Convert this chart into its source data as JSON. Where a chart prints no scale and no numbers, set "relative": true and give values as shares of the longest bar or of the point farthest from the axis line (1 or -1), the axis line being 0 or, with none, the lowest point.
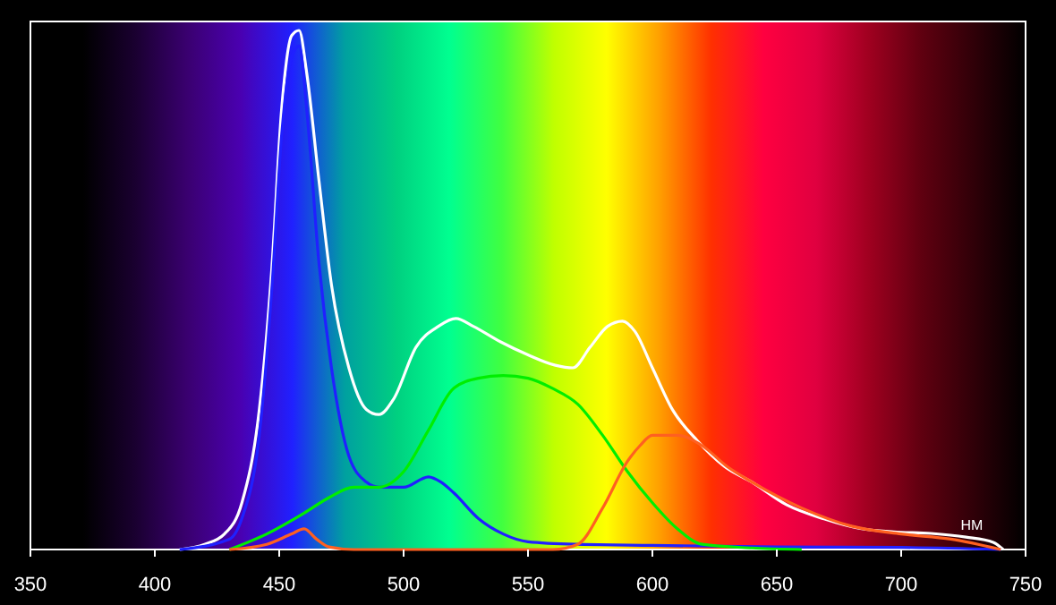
{
  "chart_data": {
    "type": "line",
    "relative": true,
    "xlabel": "НМ",
    "xlim": [
      350,
      750
    ],
    "xticks": [
      350,
      400,
      450,
      500,
      550,
      600,
      650,
      700,
      750
    ],
    "grid": false,
    "marker": "none",
    "line_style": "solid",
    "series": [
      {
        "color": "#ffffff",
        "x": [
          410,
          420,
          428,
          435,
          442,
          447,
          451,
          455,
          458,
          461,
          466,
          471,
          478,
          485,
          490,
          496,
          505,
          514,
          521,
          528,
          539,
          550,
          561,
          568,
          575,
          582,
          588,
          593,
          600,
          608,
          618,
          629,
          640,
          654,
          669,
          683,
          697,
          712,
          726,
          737,
          741
        ],
        "values": [
          0,
          0.01,
          0.03,
          0.09,
          0.27,
          0.54,
          0.85,
          0.99,
          1,
          0.92,
          0.71,
          0.51,
          0.35,
          0.27,
          0.26,
          0.29,
          0.39,
          0.43,
          0.445,
          0.43,
          0.4,
          0.375,
          0.355,
          0.35,
          0.39,
          0.43,
          0.44,
          0.42,
          0.35,
          0.27,
          0.21,
          0.16,
          0.13,
          0.086,
          0.059,
          0.041,
          0.034,
          0.031,
          0.024,
          0.014,
          0
        ]
      },
      {
        "color": "#2020ff",
        "x": [
          410,
          430,
          435,
          442,
          447,
          451,
          455,
          458,
          461,
          466,
          471,
          478,
          485,
          490,
          500,
          510,
          515,
          520,
          530,
          540,
          550,
          570,
          600,
          650,
          700,
          740
        ],
        "values": [
          0,
          0.02,
          0.06,
          0.22,
          0.5,
          0.8,
          0.95,
          0.97,
          0.85,
          0.55,
          0.35,
          0.18,
          0.13,
          0.12,
          0.12,
          0.14,
          0.13,
          0.11,
          0.06,
          0.03,
          0.015,
          0.01,
          0.008,
          0.005,
          0.004,
          0
        ]
      },
      {
        "color": "#00ee00",
        "x": [
          430,
          445,
          460,
          470,
          480,
          490,
          500,
          510,
          520,
          530,
          540,
          550,
          560,
          570,
          580,
          590,
          600,
          610,
          620,
          640,
          660
        ],
        "values": [
          0,
          0.03,
          0.07,
          0.1,
          0.12,
          0.12,
          0.15,
          0.23,
          0.31,
          0.33,
          0.335,
          0.33,
          0.31,
          0.28,
          0.22,
          0.15,
          0.09,
          0.04,
          0.01,
          0.003,
          0
        ]
      },
      {
        "color": "#ff6020",
        "x": [
          430,
          445,
          455,
          460,
          465,
          470,
          480,
          560,
          570,
          580,
          590,
          595,
          600,
          610,
          620,
          630,
          640,
          660,
          680,
          700,
          720,
          740
        ],
        "values": [
          0,
          0.01,
          0.03,
          0.04,
          0.02,
          0.005,
          0,
          0,
          0.01,
          0.08,
          0.17,
          0.2,
          0.22,
          0.22,
          0.2,
          0.16,
          0.13,
          0.08,
          0.045,
          0.03,
          0.02,
          0
        ]
      }
    ]
  }
}
